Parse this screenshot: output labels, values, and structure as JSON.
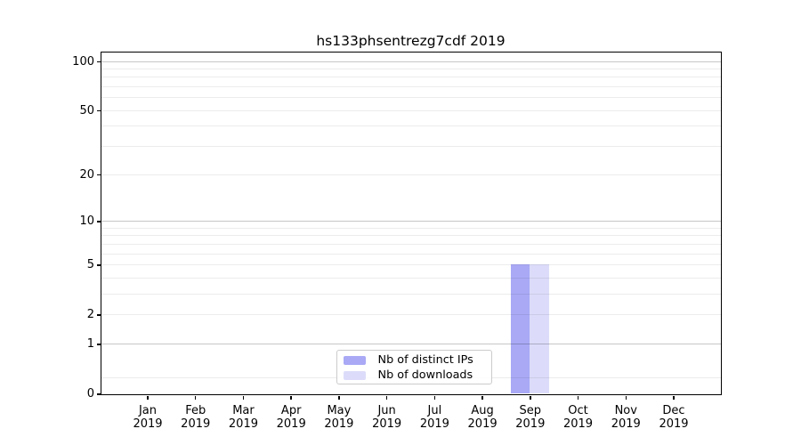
{
  "figure": {
    "background": "#ffffff"
  },
  "chart_data": {
    "type": "bar",
    "title": "hs133phsentrezg7cdf 2019",
    "categories": [
      "Jan 2019",
      "Feb 2019",
      "Mar 2019",
      "Apr 2019",
      "May 2019",
      "Jun 2019",
      "Jul 2019",
      "Aug 2019",
      "Sep 2019",
      "Oct 2019",
      "Nov 2019",
      "Dec 2019"
    ],
    "x_tick_months": [
      "Jan",
      "Feb",
      "Mar",
      "Apr",
      "May",
      "Jun",
      "Jul",
      "Aug",
      "Sep",
      "Oct",
      "Nov",
      "Dec"
    ],
    "x_tick_year": "2019",
    "series": [
      {
        "name": "Nb of distinct IPs",
        "color": "#a9a9f6",
        "values": [
          0,
          0,
          0,
          0,
          0,
          0,
          0,
          0,
          5,
          0,
          0,
          0
        ]
      },
      {
        "name": "Nb of downloads",
        "color": "#dcdcfa",
        "values": [
          0,
          0,
          0,
          0,
          0,
          0,
          0,
          0,
          5,
          0,
          0,
          0
        ]
      }
    ],
    "y_axis": {
      "scale": "log1p",
      "major_ticks": [
        0,
        1,
        2,
        5,
        10,
        20,
        50,
        100
      ],
      "emphasized_gridlines": [
        1,
        10,
        100
      ],
      "minor_gridlines": [
        0.25,
        3,
        4,
        6,
        7,
        8,
        9,
        30,
        40,
        60,
        70,
        80,
        90
      ],
      "ylim": [
        0,
        114
      ]
    },
    "xlabel": "",
    "ylabel": "",
    "grid": "horizontal",
    "legend_position": "lower center",
    "colors": {
      "grid_light": "rgba(0,0,0,0.075)",
      "grid_emphasized": "rgba(0,0,0,0.22)",
      "axis": "#000000",
      "text": "#000000"
    }
  }
}
